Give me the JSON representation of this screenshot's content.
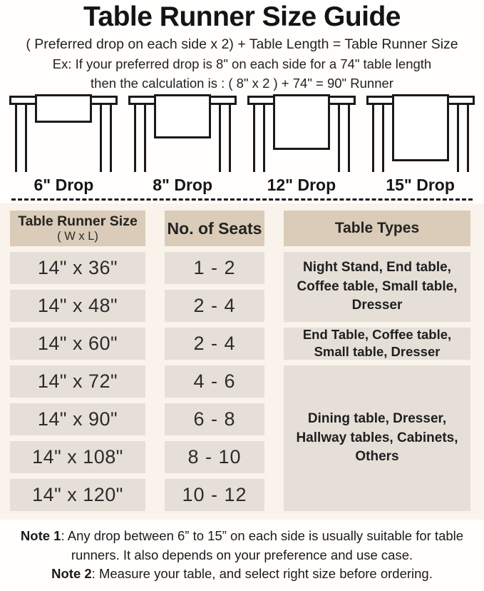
{
  "header": {
    "title": "Table Runner Size Guide",
    "formula_line": "( Preferred drop on each side x 2) + Table Length = Table Runner Size",
    "example_line1": "Ex: If your preferred drop is 8\" on each side for a 74\" table length",
    "example_line2": "then the calculation is : ( 8\" x 2 ) + 74\" = 90\" Runner"
  },
  "diagrams": {
    "items": [
      {
        "label": "6\" Drop"
      },
      {
        "label": "8\" Drop"
      },
      {
        "label": "12\" Drop"
      },
      {
        "label": "15\" Drop"
      }
    ]
  },
  "size_table": {
    "headers": {
      "size_line1": "Table Runner Size",
      "size_line2": "( W x L)",
      "seats": "No. of Seats",
      "types": "Table Types"
    },
    "rows": [
      {
        "size": "14\" x 36\"",
        "seats": "1 - 2"
      },
      {
        "size": "14\" x 48\"",
        "seats": "2 - 4"
      },
      {
        "size": "14\" x 60\"",
        "seats": "2 - 4"
      },
      {
        "size": "14\" x 72\"",
        "seats": "4 - 6"
      },
      {
        "size": "14\" x 90\"",
        "seats": "6 - 8"
      },
      {
        "size": "14\" x 108\"",
        "seats": "8 - 10"
      },
      {
        "size": "14\" x 120\"",
        "seats": "10 - 12"
      }
    ],
    "type_groups": [
      {
        "text": "Night Stand, End table, Coffee table, Small table, Dresser",
        "applies_to_rows": "1-2"
      },
      {
        "text": "End Table, Coffee table, Small table, Dresser",
        "applies_to_rows": "3"
      },
      {
        "text": "Dining table, Dresser, Hallway tables, Cabinets, Others",
        "applies_to_rows": "4-7"
      }
    ]
  },
  "notes": [
    {
      "label": "Note 1",
      "sep": ": ",
      "text": "Any drop between 6” to 15” on each side is usually suitable for table runners. It also depends on your preference and use case."
    },
    {
      "label": "Note 2",
      "sep": ": ",
      "text": "Measure your table, and select right size before ordering."
    }
  ],
  "colors": {
    "header_cell_bg": "#daccb8",
    "data_cell_bg": "#e6dfd8",
    "table_section_bg": "#f9f3ec",
    "ink": "#1a1a1a"
  }
}
